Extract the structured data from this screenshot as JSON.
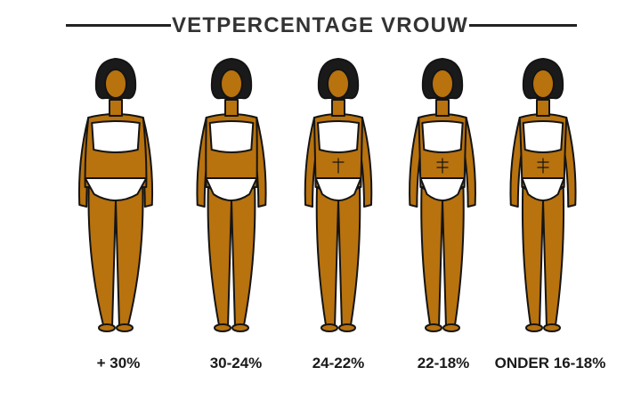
{
  "header": {
    "title": "VETPERCENTAGE VROUW"
  },
  "colors": {
    "skin": "#B8720E",
    "skin_shadow": "#9A5C08",
    "hair": "#1A1A1A",
    "underwear": "#FFFFFF",
    "outline": "#141414"
  },
  "figures": [
    {
      "label": "+ 30%"
    },
    {
      "label": "30-24%"
    },
    {
      "label": "24-22%"
    },
    {
      "label": "22-18%"
    },
    {
      "label": "ONDER 16-18%"
    }
  ]
}
